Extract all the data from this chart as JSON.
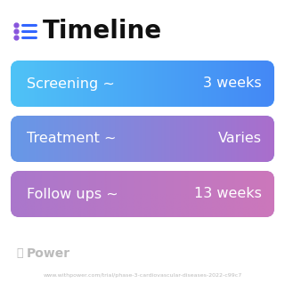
{
  "title": "Timeline",
  "background_color": "#ffffff",
  "rows": [
    {
      "label_left": "Screening ~",
      "label_right": "3 weeks",
      "gradient_start": "#4fc3f7",
      "gradient_end": "#4488f5"
    },
    {
      "label_left": "Treatment ~",
      "label_right": "Varies",
      "gradient_start": "#6699e8",
      "gradient_end": "#aa6ecc"
    },
    {
      "label_left": "Follow ups ~",
      "label_right": "13 weeks",
      "gradient_start": "#aa77cc",
      "gradient_end": "#cc77bb"
    }
  ],
  "footer_logo_text": "Power",
  "footer_url": "www.withpower.com/trial/phase-3-cardiovascular-diseases-2022-c99c7",
  "footer_color": "#bbbbbb",
  "title_fontsize": 20,
  "row_label_fontsize": 11.5,
  "icon_dot_color": "#8855dd",
  "icon_line_color": "#3366ff"
}
